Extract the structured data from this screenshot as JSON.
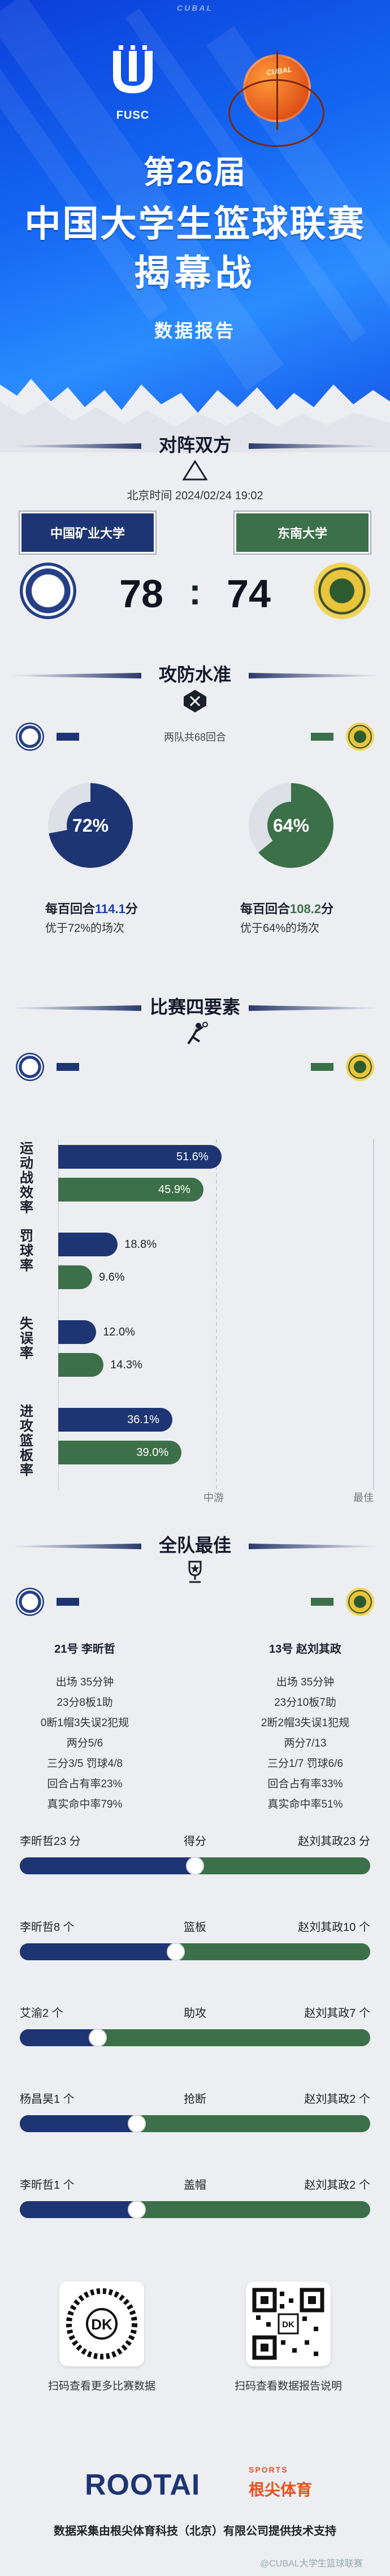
{
  "brand_watermark": "CUBAL",
  "hero": {
    "fusc_label": "FUSC",
    "cubal_label": "CUBAL",
    "edition": "第26届",
    "league": "中国大学生篮球联赛",
    "opener": "揭幕战",
    "report": "数据报告"
  },
  "matchup": {
    "title": "对阵双方",
    "datetime": "北京时间 2024/02/24 19:02",
    "home": {
      "name": "中国矿业大学",
      "score": "78"
    },
    "away": {
      "name": "东南大学",
      "score": "74"
    },
    "colon": ":"
  },
  "offdef": {
    "title": "攻防水准",
    "rounds": "两队共68回合",
    "home": {
      "pct_label": "72%",
      "pct": 72,
      "per100_prefix": "每百回合",
      "per100_value": "114.1",
      "per100_suffix": "分",
      "better": "优于72%的场次"
    },
    "away": {
      "pct_label": "64%",
      "pct": 64,
      "per100_prefix": "每百回合",
      "per100_value": "108.2",
      "per100_suffix": "分",
      "better": "优于64%的场次"
    }
  },
  "factors": {
    "title": "比赛四要素",
    "axis_mid": "中游",
    "axis_best": "最佳",
    "items": [
      {
        "label": "运动战效率",
        "home_value": "51.6%",
        "home_pct": 51.6,
        "away_value": "45.9%",
        "away_pct": 45.9
      },
      {
        "label": "罚球率",
        "home_value": "18.8%",
        "home_pct": 18.8,
        "away_value": "9.6%",
        "away_pct": 9.6
      },
      {
        "label": "失误率",
        "home_value": "12.0%",
        "home_pct": 12.0,
        "away_value": "14.3%",
        "away_pct": 14.3
      },
      {
        "label": "进攻篮板率",
        "home_value": "36.1%",
        "home_pct": 36.1,
        "away_value": "39.0%",
        "away_pct": 39.0
      }
    ]
  },
  "best": {
    "title": "全队最佳",
    "home_player": {
      "name": "21号 李昕哲",
      "lines": [
        "出场 35分钟",
        "23分8板1助",
        "0断1帽3失误2犯规",
        "两分5/6",
        "三分3/5 罚球4/8",
        "回合占有率23%",
        "真实命中率79%"
      ]
    },
    "away_player": {
      "name": "13号 赵刘其政",
      "lines": [
        "出场 35分钟",
        "23分10板7助",
        "2断2帽3失误1犯规",
        "两分7/13",
        "三分1/7 罚球6/6",
        "回合占有率33%",
        "真实命中率51%"
      ]
    },
    "stats": [
      {
        "category": "得分",
        "home": "李昕哲23 分",
        "away": "赵刘其政23 分",
        "home_value": 23,
        "away_value": 23
      },
      {
        "category": "篮板",
        "home": "李昕哲8 个",
        "away": "赵刘其政10 个",
        "home_value": 8,
        "away_value": 10
      },
      {
        "category": "助攻",
        "home": "艾渝2 个",
        "away": "赵刘其政7 个",
        "home_value": 2,
        "away_value": 7
      },
      {
        "category": "抢断",
        "home": "杨昌昊1 个",
        "away": "赵刘其政2 个",
        "home_value": 1,
        "away_value": 2
      },
      {
        "category": "盖帽",
        "home": "李昕哲1 个",
        "away": "赵刘其政2 个",
        "home_value": 1,
        "away_value": 2
      }
    ]
  },
  "qr": {
    "left_caption": "扫码查看更多比赛数据",
    "right_caption": "扫码查看数据报告说明"
  },
  "brand": {
    "name": "ROOTAI",
    "sports": "SPORTS",
    "cn": "根尖体育",
    "footer": "数据采集由根尖体育科技（北京）有限公司提供技术支持",
    "watermark": "@CUBAL大学生篮球联赛"
  }
}
